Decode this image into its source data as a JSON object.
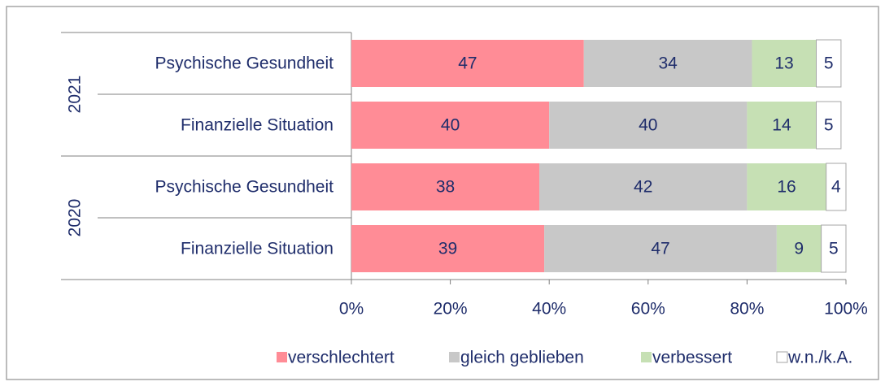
{
  "chart_data": {
    "type": "bar",
    "orientation": "horizontal",
    "stacked": true,
    "groups": [
      {
        "label": "2021",
        "rows": [
          0,
          1
        ]
      },
      {
        "label": "2020",
        "rows": [
          2,
          3
        ]
      }
    ],
    "categories": [
      "Psychische Gesundheit",
      "Finanzielle Situation",
      "Psychische Gesundheit",
      "Finanzielle Situation"
    ],
    "series": [
      {
        "name": "verschlechtert",
        "color": "#ff8c96",
        "values": [
          47,
          40,
          38,
          39
        ]
      },
      {
        "name": "gleich geblieben",
        "color": "#c8c8c8",
        "values": [
          34,
          40,
          42,
          47
        ]
      },
      {
        "name": "verbessert",
        "color": "#c6e0b4",
        "values": [
          13,
          14,
          16,
          9
        ]
      },
      {
        "name": "w.n./k.A.",
        "color": "#ffffff",
        "values": [
          5,
          5,
          4,
          5
        ]
      }
    ],
    "xlim": [
      0,
      100
    ],
    "xticks": [
      {
        "value": 0,
        "label": "0%"
      },
      {
        "value": 20,
        "label": "20%"
      },
      {
        "value": 40,
        "label": "40%"
      },
      {
        "value": 60,
        "label": "60%"
      },
      {
        "value": 80,
        "label": "80%"
      },
      {
        "value": 100,
        "label": "100%"
      }
    ],
    "legend": "bottom"
  }
}
